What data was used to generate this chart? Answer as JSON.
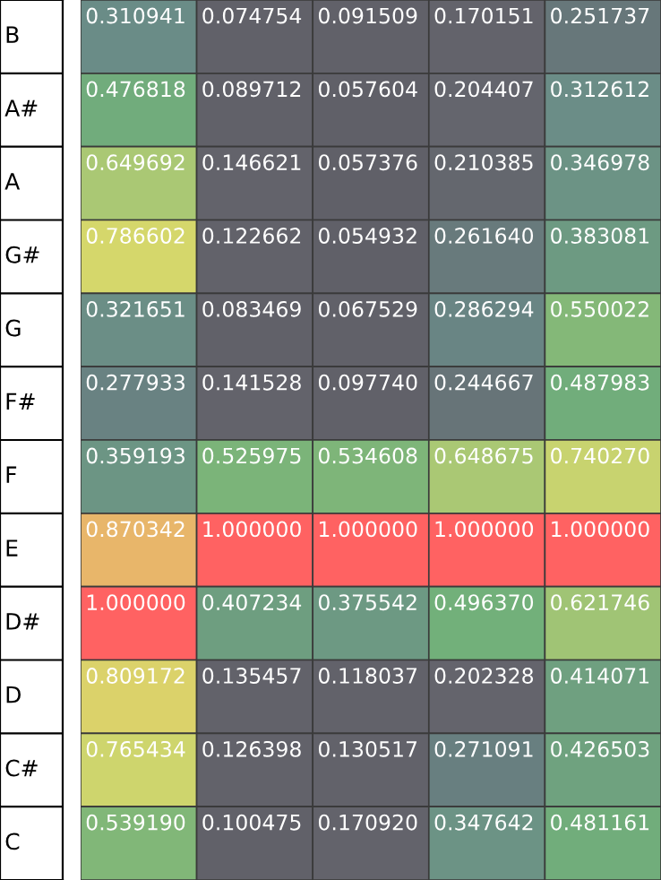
{
  "chart_data": {
    "type": "heatmap",
    "categories": [
      null,
      null,
      null,
      null,
      null
    ],
    "y_categories": [
      "B",
      "A#",
      "A",
      "G#",
      "G",
      "F#",
      "F",
      "E",
      "D#",
      "D",
      "C#",
      "C"
    ],
    "cells": [
      [
        0.310941,
        0.074754,
        0.091509,
        0.170151,
        0.251737
      ],
      [
        0.476818,
        0.089712,
        0.057604,
        0.204407,
        0.312612
      ],
      [
        0.649692,
        0.146621,
        0.057376,
        0.210385,
        0.346978
      ],
      [
        0.786602,
        0.122662,
        0.054932,
        0.26164,
        0.383081
      ],
      [
        0.321651,
        0.083469,
        0.067529,
        0.286294,
        0.550022
      ],
      [
        0.277933,
        0.141528,
        0.09774,
        0.244667,
        0.487983
      ],
      [
        0.359193,
        0.525975,
        0.534608,
        0.648675,
        0.74027
      ],
      [
        0.870342,
        1.0,
        1.0,
        1.0,
        1.0
      ],
      [
        1.0,
        0.407234,
        0.375542,
        0.49637,
        0.621746
      ],
      [
        0.809172,
        0.135457,
        0.118037,
        0.202328,
        0.414071
      ],
      [
        0.765434,
        0.126398,
        0.130517,
        0.271091,
        0.426503
      ],
      [
        0.53919,
        0.100475,
        0.17092,
        0.347642,
        0.481161
      ]
    ],
    "cell_labels": [
      [
        "0.310941",
        "0.074754",
        "0.091509",
        "0.170151",
        "0.251737"
      ],
      [
        "0.476818",
        "0.089712",
        "0.057604",
        "0.204407",
        "0.312612"
      ],
      [
        "0.649692",
        "0.146621",
        "0.057376",
        "0.210385",
        "0.346978"
      ],
      [
        "0.786602",
        "0.122662",
        "0.054932",
        "0.261640",
        "0.383081"
      ],
      [
        "0.321651",
        "0.083469",
        "0.067529",
        "0.286294",
        "0.550022"
      ],
      [
        "0.277933",
        "0.141528",
        "0.097740",
        "0.244667",
        "0.487983"
      ],
      [
        "0.359193",
        "0.525975",
        "0.534608",
        "0.648675",
        "0.740270"
      ],
      [
        "0.870342",
        "1.000000",
        "1.000000",
        "1.000000",
        "1.000000"
      ],
      [
        "1.000000",
        "0.407234",
        "0.375542",
        "0.496370",
        "0.621746"
      ],
      [
        "0.809172",
        "0.135457",
        "0.118037",
        "0.202328",
        "0.414071"
      ],
      [
        "0.765434",
        "0.126398",
        "0.130517",
        "0.271091",
        "0.426503"
      ],
      [
        "0.539190",
        "0.100475",
        "0.170920",
        "0.347642",
        "0.481161"
      ]
    ]
  }
}
